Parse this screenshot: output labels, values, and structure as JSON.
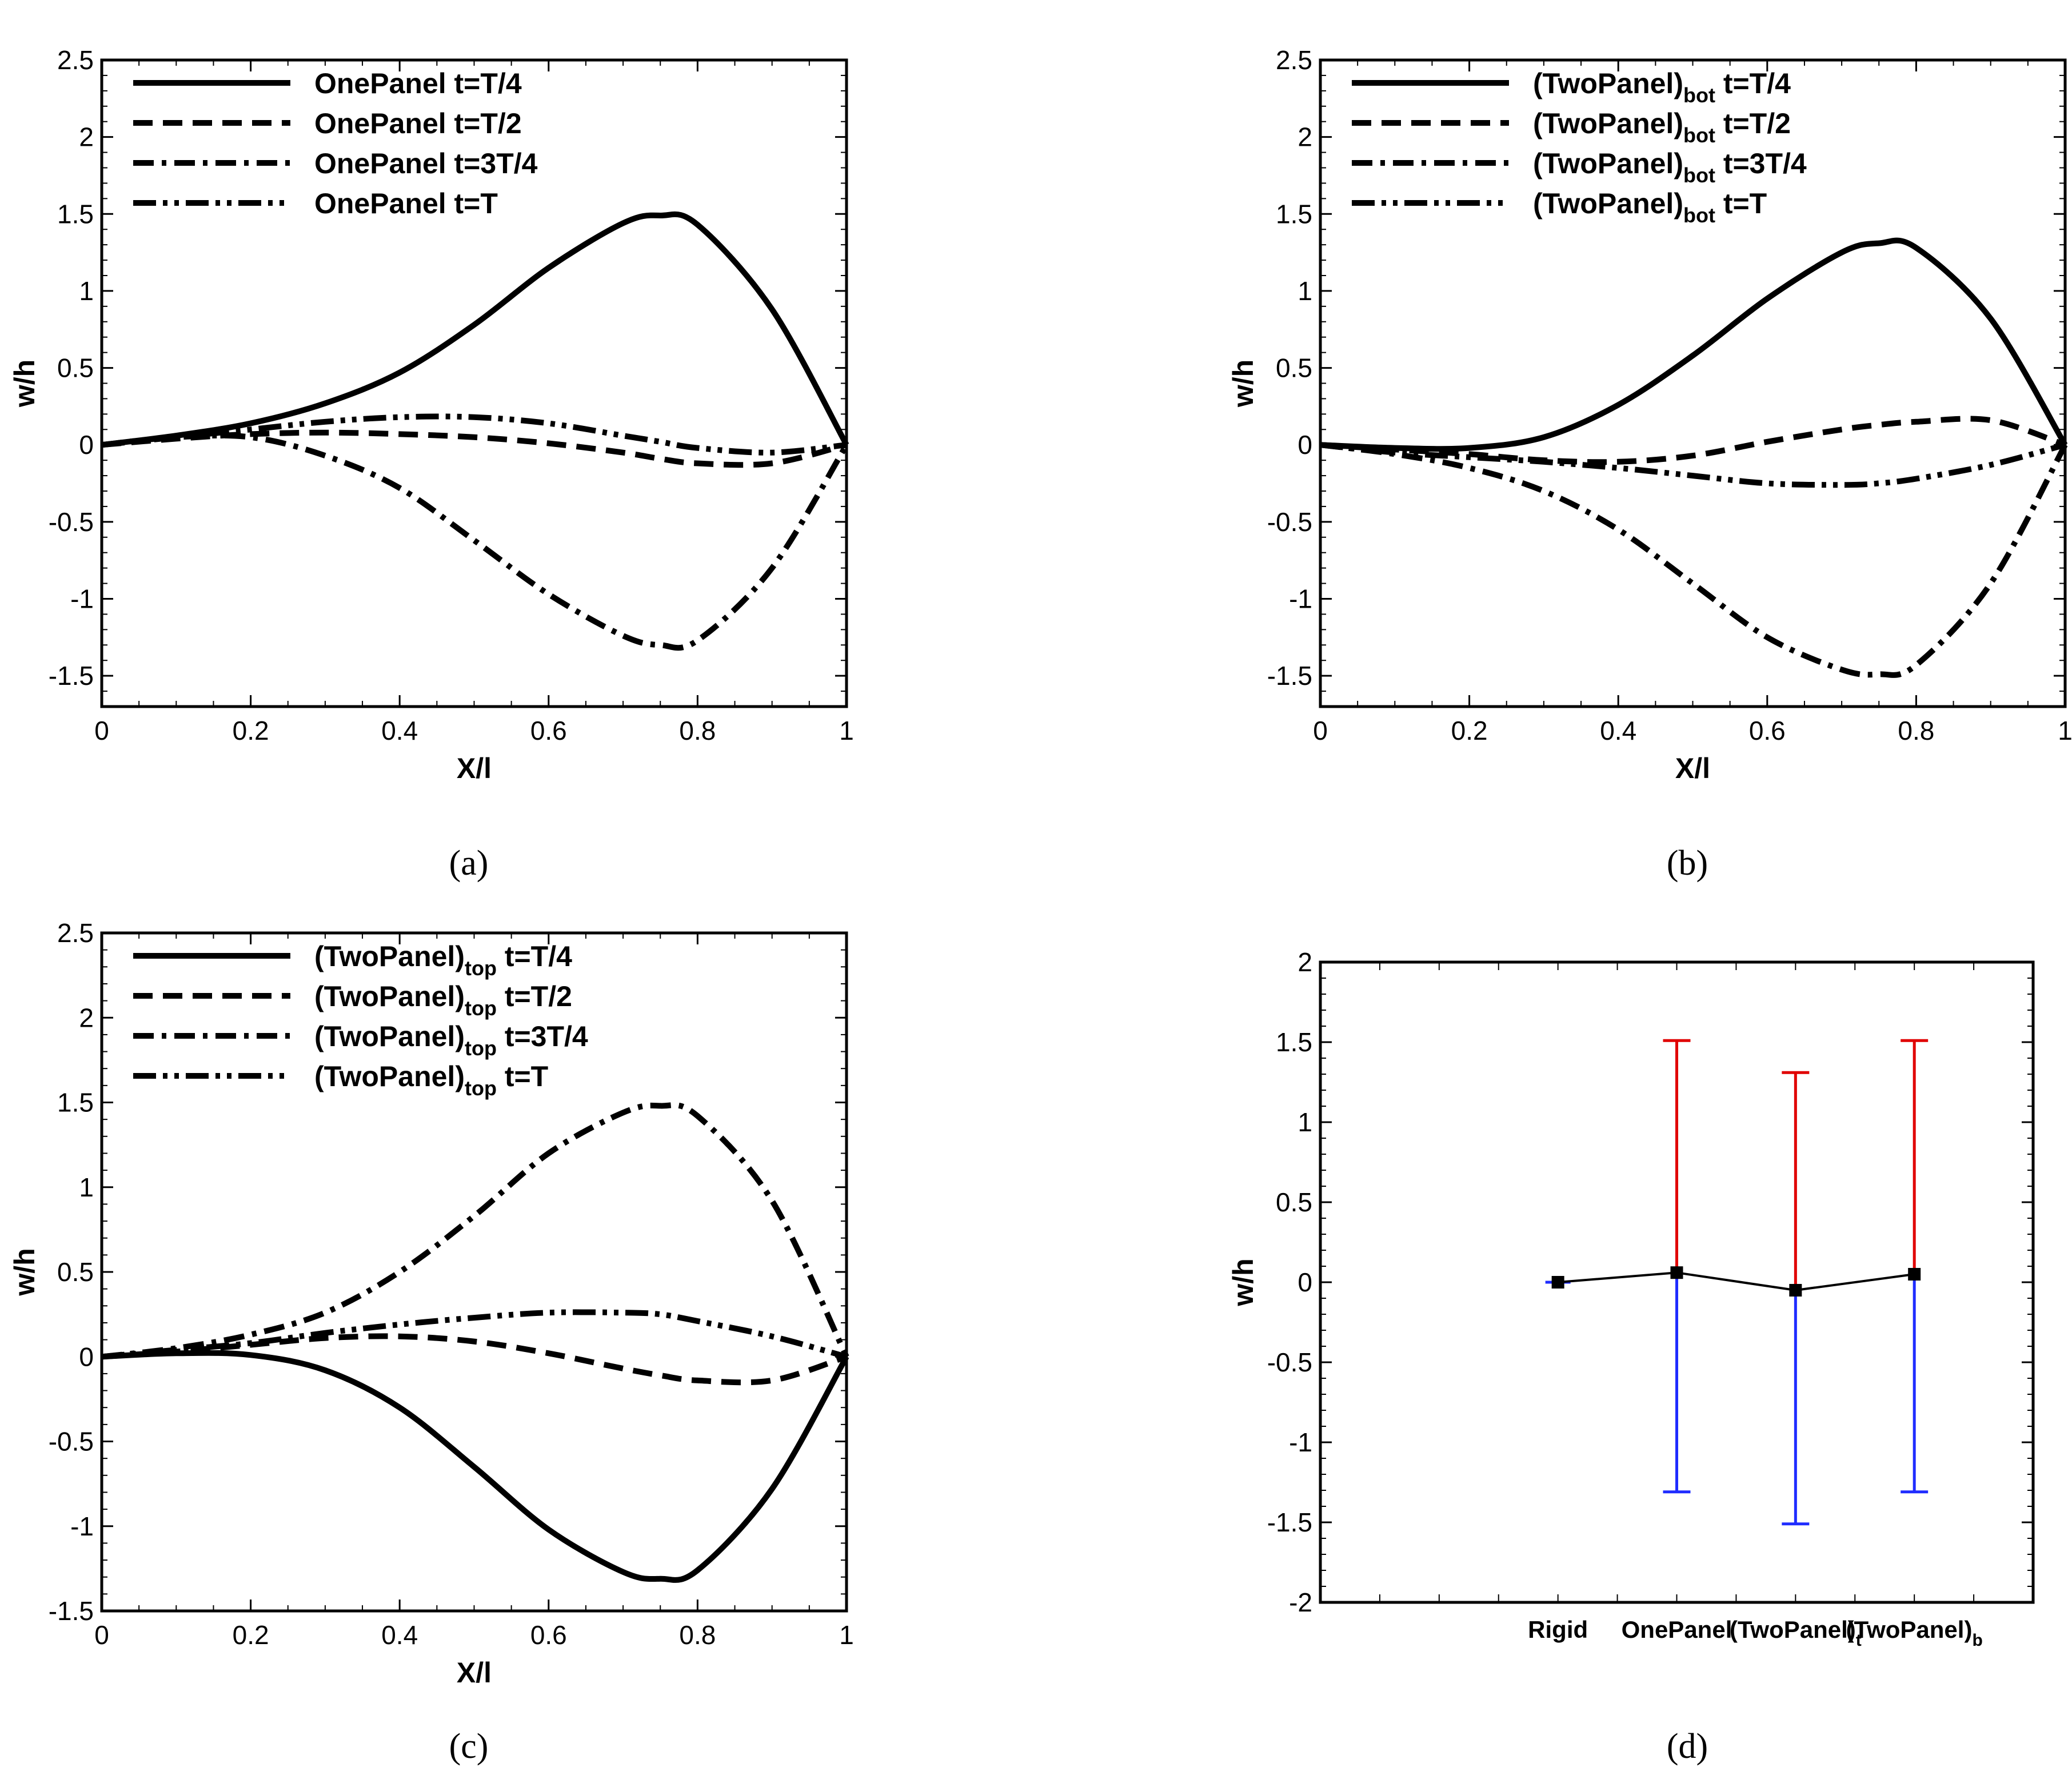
{
  "chart_data": [
    {
      "id": "a",
      "type": "line",
      "caption": "(a)",
      "xlabel": "X/l",
      "ylabel": "w/h",
      "xlim": [
        0,
        1
      ],
      "ylim": [
        -1.7,
        2.5
      ],
      "xticks": [
        "0",
        "0.2",
        "0.4",
        "0.6",
        "0.8",
        "1"
      ],
      "yticks": [
        "2.5",
        "2",
        "1.5",
        "1",
        "0.5",
        "0",
        "-0.5",
        "-1",
        "-1.5"
      ],
      "x": [
        0,
        0.1,
        0.2,
        0.3,
        0.4,
        0.5,
        0.6,
        0.7,
        0.75,
        0.8,
        0.9,
        1.0
      ],
      "series": [
        {
          "base": "OnePanel t=T/4",
          "sub": "",
          "rest": "",
          "style": "solid",
          "y": [
            0,
            0.06,
            0.14,
            0.27,
            0.47,
            0.78,
            1.15,
            1.44,
            1.49,
            1.43,
            0.88,
            0
          ]
        },
        {
          "base": "OnePanel t=T/2",
          "sub": "",
          "rest": "",
          "style": "dash",
          "y": [
            0,
            0.04,
            0.07,
            0.08,
            0.07,
            0.05,
            0.01,
            -0.05,
            -0.09,
            -0.12,
            -0.12,
            0
          ]
        },
        {
          "base": "OnePanel t=3T/4",
          "sub": "",
          "rest": "",
          "style": "dashdot",
          "y": [
            0,
            0.05,
            0.05,
            -0.07,
            -0.28,
            -0.62,
            -0.97,
            -1.24,
            -1.3,
            -1.27,
            -0.8,
            0
          ]
        },
        {
          "base": "OnePanel t=T",
          "sub": "",
          "rest": "",
          "style": "dashdotdot",
          "y": [
            0,
            0.05,
            0.1,
            0.15,
            0.18,
            0.18,
            0.14,
            0.06,
            0.02,
            -0.02,
            -0.05,
            0
          ]
        }
      ]
    },
    {
      "id": "b",
      "type": "line",
      "caption": "(b)",
      "xlabel": "X/l",
      "ylabel": "w/h",
      "xlim": [
        0,
        1
      ],
      "ylim": [
        -1.7,
        2.5
      ],
      "xticks": [
        "0",
        "0.2",
        "0.4",
        "0.6",
        "0.8",
        "1"
      ],
      "yticks": [
        "2.5",
        "2",
        "1.5",
        "1",
        "0.5",
        "0",
        "-0.5",
        "-1",
        "-1.5"
      ],
      "x": [
        0,
        0.1,
        0.2,
        0.3,
        0.4,
        0.5,
        0.6,
        0.7,
        0.75,
        0.8,
        0.9,
        1.0
      ],
      "series": [
        {
          "base": "(TwoPanel)",
          "sub": "bot",
          "rest": " t=T/4",
          "style": "solid",
          "y": [
            0,
            -0.02,
            -0.02,
            0.05,
            0.26,
            0.58,
            0.95,
            1.25,
            1.31,
            1.28,
            0.82,
            0
          ]
        },
        {
          "base": "(TwoPanel)",
          "sub": "bot",
          "rest": " t=T/2",
          "style": "dash",
          "y": [
            0,
            -0.03,
            -0.06,
            -0.1,
            -0.11,
            -0.07,
            0.02,
            0.1,
            0.13,
            0.15,
            0.16,
            0
          ]
        },
        {
          "base": "(TwoPanel)",
          "sub": "bot",
          "rest": " t=3T/4",
          "style": "dashdot",
          "y": [
            0,
            -0.06,
            -0.15,
            -0.3,
            -0.55,
            -0.9,
            -1.25,
            -1.46,
            -1.49,
            -1.43,
            -0.9,
            0
          ]
        },
        {
          "base": "(TwoPanel)",
          "sub": "bot",
          "rest": " t=T",
          "style": "dashdotdot",
          "y": [
            0,
            -0.05,
            -0.08,
            -0.11,
            -0.15,
            -0.2,
            -0.25,
            -0.26,
            -0.25,
            -0.22,
            -0.13,
            0
          ]
        }
      ]
    },
    {
      "id": "c",
      "type": "line",
      "caption": "(c)",
      "xlabel": "X/l",
      "ylabel": "w/h",
      "xlim": [
        0,
        1
      ],
      "ylim": [
        -1.5,
        2.5
      ],
      "xticks": [
        "0",
        "0.2",
        "0.4",
        "0.6",
        "0.8",
        "1"
      ],
      "yticks": [
        "2.5",
        "2",
        "1.5",
        "1",
        "0.5",
        "0",
        "-0.5",
        "-1",
        "-1.5"
      ],
      "x": [
        0,
        0.1,
        0.2,
        0.3,
        0.4,
        0.5,
        0.6,
        0.7,
        0.75,
        0.8,
        0.9,
        1.0
      ],
      "series": [
        {
          "base": "(TwoPanel)",
          "sub": "top",
          "rest": " t=T/4",
          "style": "solid",
          "y": [
            0,
            0.02,
            0.01,
            -0.08,
            -0.3,
            -0.65,
            -1.02,
            -1.27,
            -1.31,
            -1.26,
            -0.78,
            0
          ]
        },
        {
          "base": "(TwoPanel)",
          "sub": "top",
          "rest": " t=T/2",
          "style": "dash",
          "y": [
            0,
            0.03,
            0.07,
            0.11,
            0.12,
            0.09,
            0.02,
            -0.07,
            -0.11,
            -0.14,
            -0.14,
            0
          ]
        },
        {
          "base": "(TwoPanel)",
          "sub": "top",
          "rest": " t=3T/4",
          "style": "dashdot",
          "y": [
            0,
            0.05,
            0.13,
            0.26,
            0.5,
            0.83,
            1.2,
            1.44,
            1.48,
            1.42,
            0.92,
            0
          ]
        },
        {
          "base": "(TwoPanel)",
          "sub": "top",
          "rest": " t=T",
          "style": "dashdotdot",
          "y": [
            0,
            0.04,
            0.08,
            0.14,
            0.19,
            0.23,
            0.26,
            0.26,
            0.25,
            0.21,
            0.12,
            0
          ]
        }
      ]
    },
    {
      "id": "d",
      "type": "errorbar",
      "caption": "(d)",
      "ylabel": "w/h",
      "ylim": [
        -2,
        2
      ],
      "xlim": [
        0,
        6
      ],
      "yticks": [
        "2",
        "1.5",
        "1",
        "0.5",
        "0",
        "-0.5",
        "-1",
        "-1.5",
        "-2"
      ],
      "categories": [
        {
          "base": "Rigid",
          "sub": ""
        },
        {
          "base": "OnePanel",
          "sub": ""
        },
        {
          "base": "(TwoPanel)",
          "sub": "t"
        },
        {
          "base": "(TwoPanel)",
          "sub": "b"
        }
      ],
      "x": [
        2,
        3,
        4,
        5
      ],
      "mean": [
        0,
        0.06,
        -0.05,
        0.05
      ],
      "max": [
        0,
        1.51,
        1.31,
        1.51
      ],
      "min": [
        0,
        -1.31,
        -1.51,
        -1.31
      ],
      "colors": {
        "upper": "#e00000",
        "lower": "#1f2cff",
        "line": "#000000"
      }
    }
  ]
}
